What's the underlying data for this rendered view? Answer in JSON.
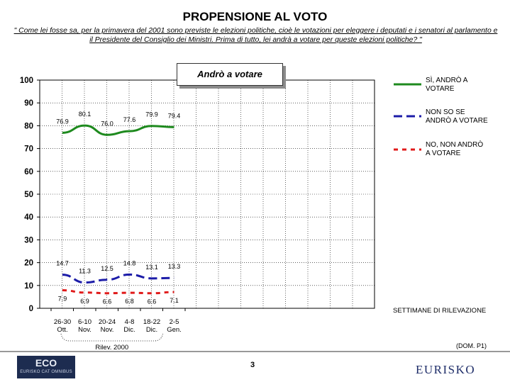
{
  "title": "PROPENSIONE AL VOTO",
  "question": "\" Come lei fosse sa, per la primavera del 2001 sono previste le elezioni politiche, cioè le votazioni per eleggere i deputati e i senatori al parlamento e il Presidente del Consiglio dei Ministri. Prima di tutto, lei andrà a votare per queste elezioni politiche? \"",
  "footer": {
    "weeks_label": "SETTIMANE DI RILEVAZIONE",
    "dom": "(DOM. P1)",
    "page_number": "3",
    "logo_left": "ECO",
    "logo_left_sub": "EURISKO CAT OMNIBUS",
    "logo_right": "EURISKO"
  },
  "chart_data": {
    "type": "line",
    "subtitle": "Andrò a votare",
    "categories": [
      "26-30 Ott.",
      "6-10 Nov.",
      "20-24 Nov.",
      "4-8 Dic.",
      "18-22 Dic.",
      "2-5 Gen."
    ],
    "category_lines": [
      [
        "26-30",
        "Ott."
      ],
      [
        "6-10",
        "Nov."
      ],
      [
        "20-24",
        "Nov."
      ],
      [
        "4-8",
        "Dic."
      ],
      [
        "18-22",
        "Dic."
      ],
      [
        "2-5",
        "Gen."
      ]
    ],
    "group_label": "Rilev. 2000",
    "ylim": [
      0,
      100
    ],
    "yticks": [
      0,
      10,
      20,
      30,
      40,
      50,
      60,
      70,
      80,
      90,
      100
    ],
    "grid": true,
    "legend_position": "right",
    "series": [
      {
        "name": "SÌ, ANDRÒ A VOTARE",
        "name_lines": [
          "SÌ, ANDRÒ A",
          "VOTARE"
        ],
        "color": "#1e8a1e",
        "dash": "solid",
        "values": [
          76.9,
          80.1,
          76.0,
          77.6,
          79.9,
          79.4
        ],
        "labels": [
          "76.9",
          "80.1",
          "76.0",
          "77.6",
          "79.9",
          "79.4"
        ]
      },
      {
        "name": "NON SO SE ANDRÒ A VOTARE",
        "name_lines": [
          "NON SO SE",
          "ANDRÒ A VOTARE"
        ],
        "color": "#1c1ca8",
        "dash": "dashed",
        "values": [
          14.7,
          11.3,
          12.5,
          14.8,
          13.1,
          13.3
        ],
        "labels": [
          "14.7",
          "11.3",
          "12.5",
          "14.8",
          "13.1",
          "13.3"
        ]
      },
      {
        "name": "NO, NON ANDRÒ A VOTARE",
        "name_lines": [
          "NO, NON ANDRÒ",
          "A VOTARE"
        ],
        "color": "#e01a1a",
        "dash": "dotted",
        "values": [
          7.9,
          6.9,
          6.6,
          6.8,
          6.6,
          7.1
        ],
        "labels": [
          "7.9",
          "6.9",
          "6.6",
          "6.8",
          "6.6",
          "7.1"
        ]
      }
    ]
  }
}
